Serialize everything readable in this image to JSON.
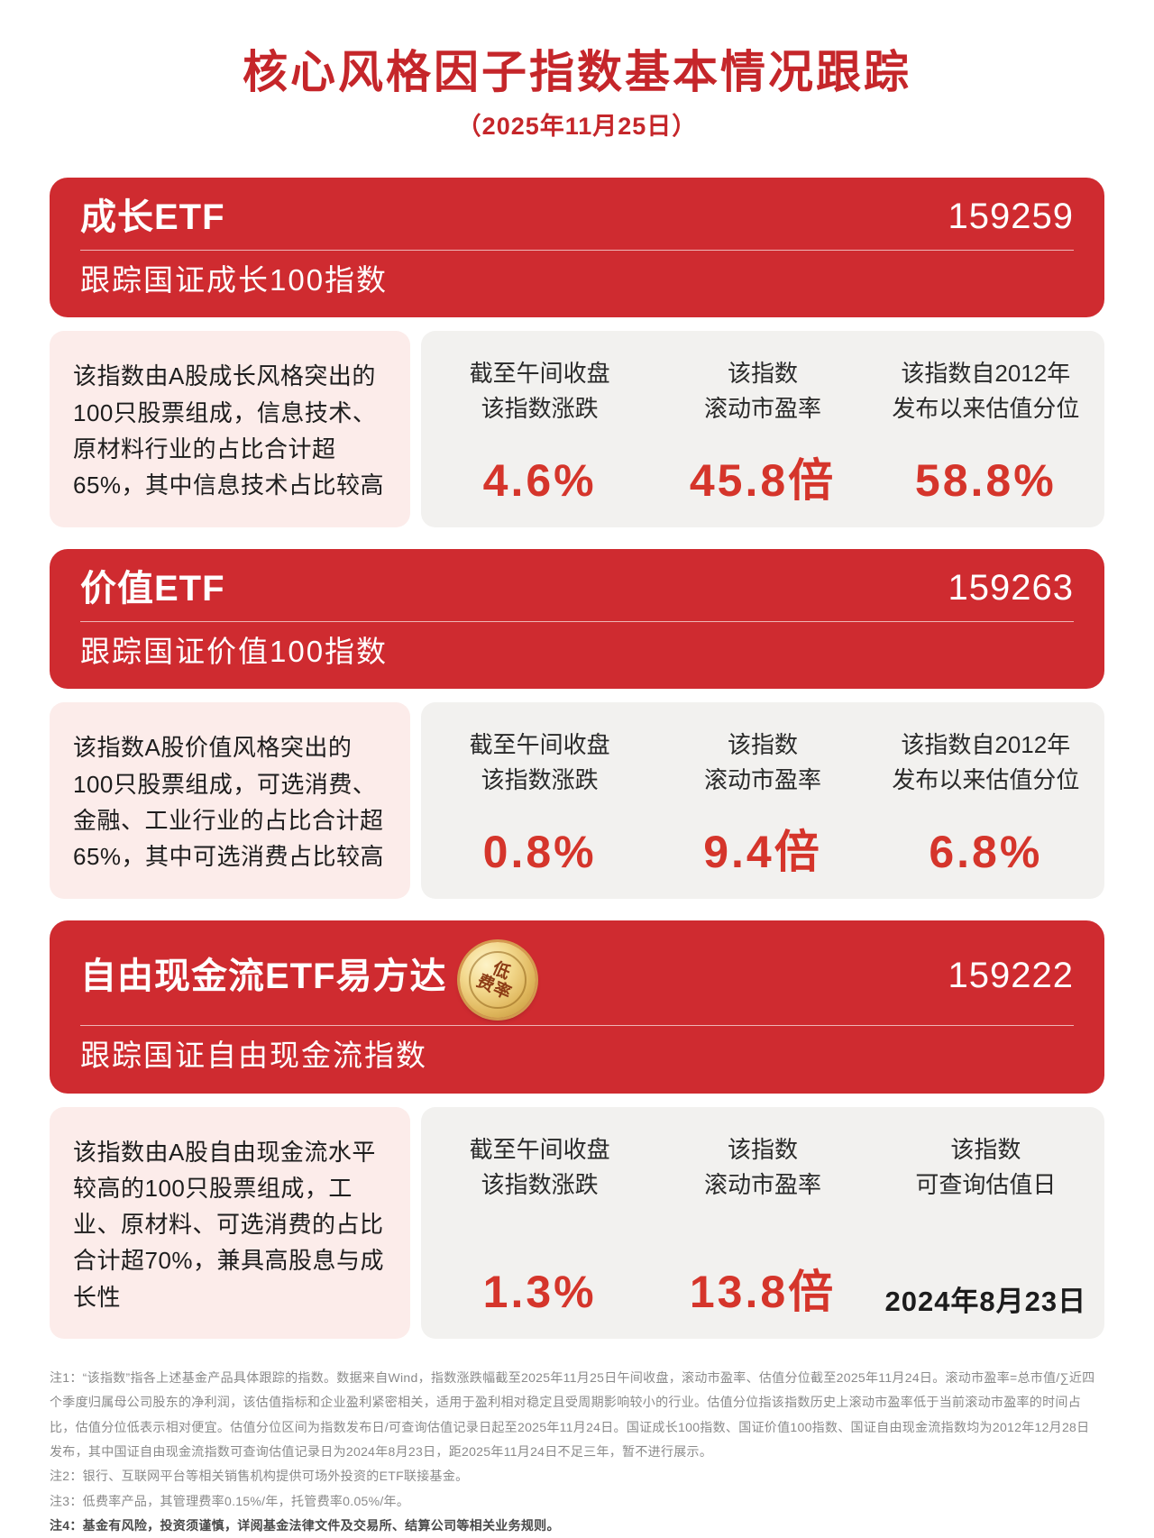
{
  "title": "核心风格因子指数基本情况跟踪",
  "subtitle": "（2025年11月25日）",
  "cards": [
    {
      "name": "成长ETF",
      "code": "159259",
      "track": "跟踪国证成长100指数",
      "description": "该指数由A股成长风格突出的100只股票组成，信息技术、原材料行业的占比合计超65%，其中信息技术占比较高",
      "stats": [
        {
          "label": [
            "截至午间收盘",
            "该指数涨跌"
          ],
          "value": "4.6%"
        },
        {
          "label": [
            "该指数",
            "滚动市盈率"
          ],
          "value": "45.8倍"
        },
        {
          "label": [
            "该指数自2012年",
            "发布以来估值分位"
          ],
          "value": "58.8%"
        }
      ]
    },
    {
      "name": "价值ETF",
      "code": "159263",
      "track": "跟踪国证价值100指数",
      "description": "该指数A股价值风格突出的100只股票组成，可选消费、金融、工业行业的占比合计超65%，其中可选消费占比较高",
      "stats": [
        {
          "label": [
            "截至午间收盘",
            "该指数涨跌"
          ],
          "value": "0.8%"
        },
        {
          "label": [
            "该指数",
            "滚动市盈率"
          ],
          "value": "9.4倍"
        },
        {
          "label": [
            "该指数自2012年",
            "发布以来估值分位"
          ],
          "value": "6.8%"
        }
      ]
    },
    {
      "name": "自由现金流ETF易方达",
      "code": "159222",
      "track": "跟踪国证自由现金流指数",
      "badge": [
        "低",
        "费率"
      ],
      "description": "该指数由A股自由现金流水平较高的100只股票组成，工业、原材料、可选消费的占比合计超70%，兼具高股息与成长性",
      "stats": [
        {
          "label": [
            "截至午间收盘",
            "该指数涨跌"
          ],
          "value": "1.3%"
        },
        {
          "label": [
            "该指数",
            "滚动市盈率"
          ],
          "value": "13.8倍"
        },
        {
          "label": [
            "该指数",
            "可查询估值日"
          ],
          "value": "2024年8月23日"
        }
      ]
    }
  ],
  "notes": [
    "注1：“该指数”指各上述基金产品具体跟踪的指数。数据来自Wind，指数涨跌幅截至2025年11月25日午间收盘，滚动市盈率、估值分位截至2025年11月24日。滚动市盈率=总市值/∑近四个季度归属母公司股东的净利润，该估值指标和企业盈利紧密相关，适用于盈利相对稳定且受周期影响较小的行业。估值分位指该指数历史上滚动市盈率低于当前滚动市盈率的时间占比，估值分位低表示相对便宜。估值分位区间为指数发布日/可查询估值记录日起至2025年11月24日。国证成长100指数、国证价值100指数、国证自由现金流指数均为2012年12月28日发布，其中国证自由现金流指数可查询估值记录日为2024年8月23日，距2025年11月24日不足三年，暂不进行展示。",
    "注2：银行、互联网平台等相关销售机构提供可场外投资的ETF联接基金。",
    "注3：低费率产品，其管理费率0.15%/年，托管费率0.05%/年。",
    "注4：基金有风险，投资须谨慎，详阅基金法律文件及交易所、结算公司等相关业务规则。"
  ],
  "colors": {
    "card_red": "#cf2b30",
    "title_red": "#c5262a",
    "value_red": "#d5352b",
    "desc_pink": "#fcecea",
    "stats_gray": "#f2f1ef",
    "badge_gold": "#e0b85e"
  }
}
